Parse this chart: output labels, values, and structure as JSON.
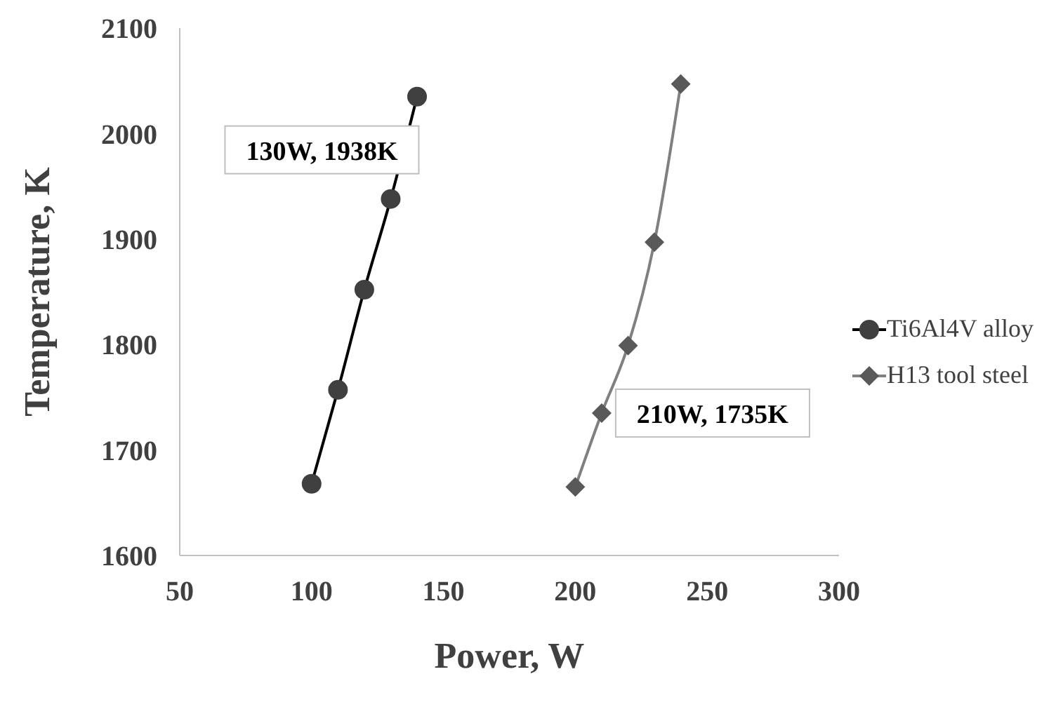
{
  "chart_data": {
    "type": "line",
    "xlabel": "Power, W",
    "ylabel": "Temperature, K",
    "xlim": [
      50,
      300
    ],
    "xticks": [
      50,
      100,
      150,
      200,
      250,
      300
    ],
    "ylim": [
      1600,
      2100
    ],
    "yticks": [
      1600,
      1700,
      1800,
      1900,
      2000,
      2100
    ],
    "grid": false,
    "legend": "right",
    "line_style": "solid",
    "series": [
      {
        "name": "Ti6Al4V alloy",
        "color": "#000000",
        "marker": "circle",
        "x": [
          100,
          110,
          120,
          130,
          140
        ],
        "values": [
          1668,
          1757,
          1852,
          1938,
          2035
        ]
      },
      {
        "name": "H13 tool steel",
        "color": "#808080",
        "marker": "diamond",
        "x": [
          200,
          210,
          220,
          230,
          240
        ],
        "values": [
          1665,
          1735,
          1799,
          1897,
          2047
        ]
      }
    ],
    "annotations": [
      {
        "text": "130W, 1938K",
        "x": 130,
        "y": 1938
      },
      {
        "text": "210W, 1735K",
        "x": 210,
        "y": 1735
      }
    ]
  }
}
